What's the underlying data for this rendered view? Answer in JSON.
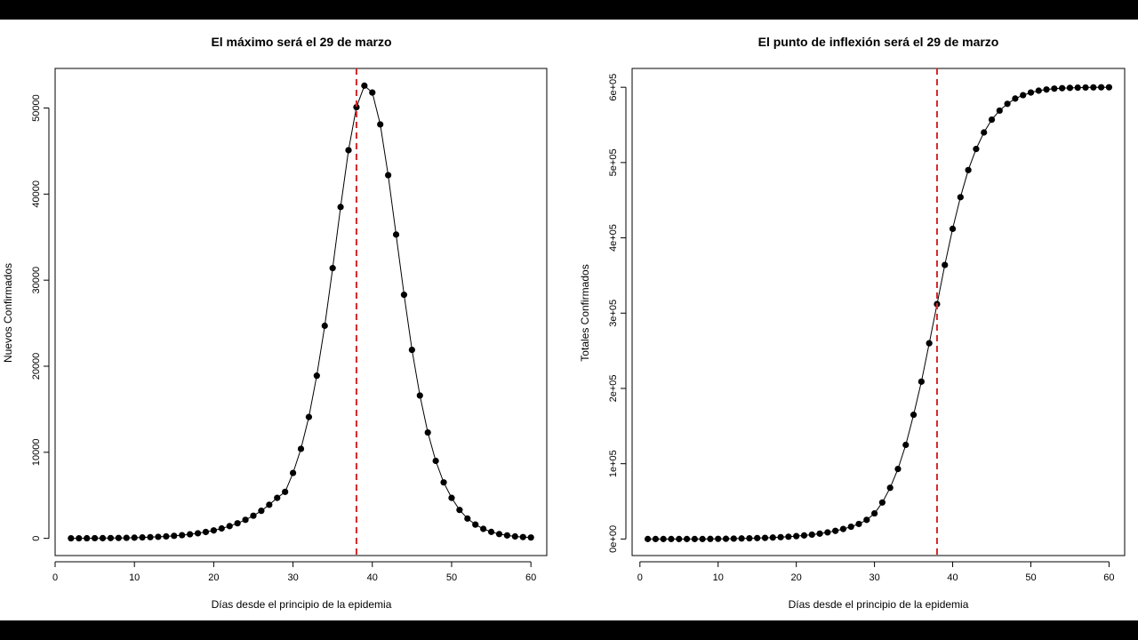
{
  "colors": {
    "points": "#000000",
    "line": "#000000",
    "marker_line": "#d62728",
    "background": "#ffffff",
    "letterbox": "#000000"
  },
  "chart_data": [
    {
      "type": "line",
      "title": "El máximo será el 29 de marzo",
      "xlabel": "Días desde el principio de la epidemia",
      "ylabel": "Nuevos Confirmados",
      "xlim": [
        0,
        62
      ],
      "ylim": [
        -2000,
        54600
      ],
      "xticks": [
        0,
        10,
        20,
        30,
        40,
        50,
        60
      ],
      "xtick_labels": [
        "0",
        "10",
        "20",
        "30",
        "40",
        "50",
        "60"
      ],
      "yticks": [
        0,
        10000,
        20000,
        30000,
        40000,
        50000
      ],
      "ytick_labels": [
        "0",
        "10000",
        "20000",
        "30000",
        "40000",
        "50000"
      ],
      "grid": false,
      "vline": {
        "x": 38,
        "style": "dashed",
        "color": "#d62728"
      },
      "series": [
        {
          "x": [
            2,
            3,
            4,
            5,
            6,
            7,
            8,
            9,
            10,
            11,
            12,
            13,
            14,
            15,
            16,
            17,
            18,
            19,
            20,
            21,
            22,
            23,
            24,
            25,
            26,
            27,
            28,
            29,
            30,
            31,
            32,
            33,
            34,
            35,
            36,
            37,
            38,
            39,
            40,
            41,
            42,
            43,
            44,
            45,
            46,
            47,
            48,
            49,
            50,
            51,
            52,
            53,
            54,
            55,
            56,
            57,
            58,
            59,
            60
          ],
          "y": [
            5,
            8,
            12,
            18,
            25,
            34,
            45,
            60,
            80,
            105,
            135,
            175,
            225,
            290,
            370,
            470,
            590,
            740,
            920,
            1150,
            1420,
            1750,
            2150,
            2630,
            3200,
            3900,
            4700,
            5400,
            7600,
            10400,
            14100,
            18900,
            24700,
            31400,
            38500,
            45100,
            50100,
            52600,
            51800,
            48100,
            42200,
            35300,
            28300,
            21900,
            16600,
            12300,
            9000,
            6500,
            4700,
            3300,
            2300,
            1600,
            1100,
            750,
            500,
            340,
            220,
            150,
            100
          ]
        }
      ]
    },
    {
      "type": "line",
      "title": "El punto de inflexión será el 29 de marzo",
      "xlabel": "Días desde el principio de la epidemia",
      "ylabel": "Totales Confirmados",
      "xlim": [
        -1,
        62
      ],
      "ylim": [
        -22000,
        625000
      ],
      "xticks": [
        0,
        10,
        20,
        30,
        40,
        50,
        60
      ],
      "xtick_labels": [
        "0",
        "10",
        "20",
        "30",
        "40",
        "50",
        "60"
      ],
      "yticks": [
        0,
        100000,
        200000,
        300000,
        400000,
        500000,
        600000
      ],
      "ytick_labels": [
        "0e+00",
        "1e+05",
        "2e+05",
        "3e+05",
        "4e+05",
        "5e+05",
        "6e+05"
      ],
      "grid": false,
      "vline": {
        "x": 38,
        "style": "dashed",
        "color": "#d62728"
      },
      "series": [
        {
          "x": [
            1,
            2,
            3,
            4,
            5,
            6,
            7,
            8,
            9,
            10,
            11,
            12,
            13,
            14,
            15,
            16,
            17,
            18,
            19,
            20,
            21,
            22,
            23,
            24,
            25,
            26,
            27,
            28,
            29,
            30,
            31,
            32,
            33,
            34,
            35,
            36,
            37,
            38,
            39,
            40,
            41,
            42,
            43,
            44,
            45,
            46,
            47,
            48,
            49,
            50,
            51,
            52,
            53,
            54,
            55,
            56,
            57,
            58,
            59,
            60
          ],
          "y": [
            0,
            0,
            0,
            0,
            0,
            0,
            0,
            0,
            100,
            200,
            300,
            500,
            700,
            900,
            1200,
            1500,
            1900,
            2400,
            3000,
            3800,
            4700,
            5800,
            7100,
            8800,
            10800,
            13300,
            16300,
            20000,
            25400,
            34000,
            48500,
            68000,
            93000,
            125000,
            165000,
            209000,
            260000,
            312000,
            364000,
            412000,
            454000,
            490000,
            518000,
            540000,
            557000,
            569000,
            578000,
            585000,
            589500,
            593000,
            595500,
            597000,
            598200,
            598800,
            599200,
            599500,
            599700,
            599850,
            599950,
            600000
          ]
        }
      ]
    }
  ]
}
